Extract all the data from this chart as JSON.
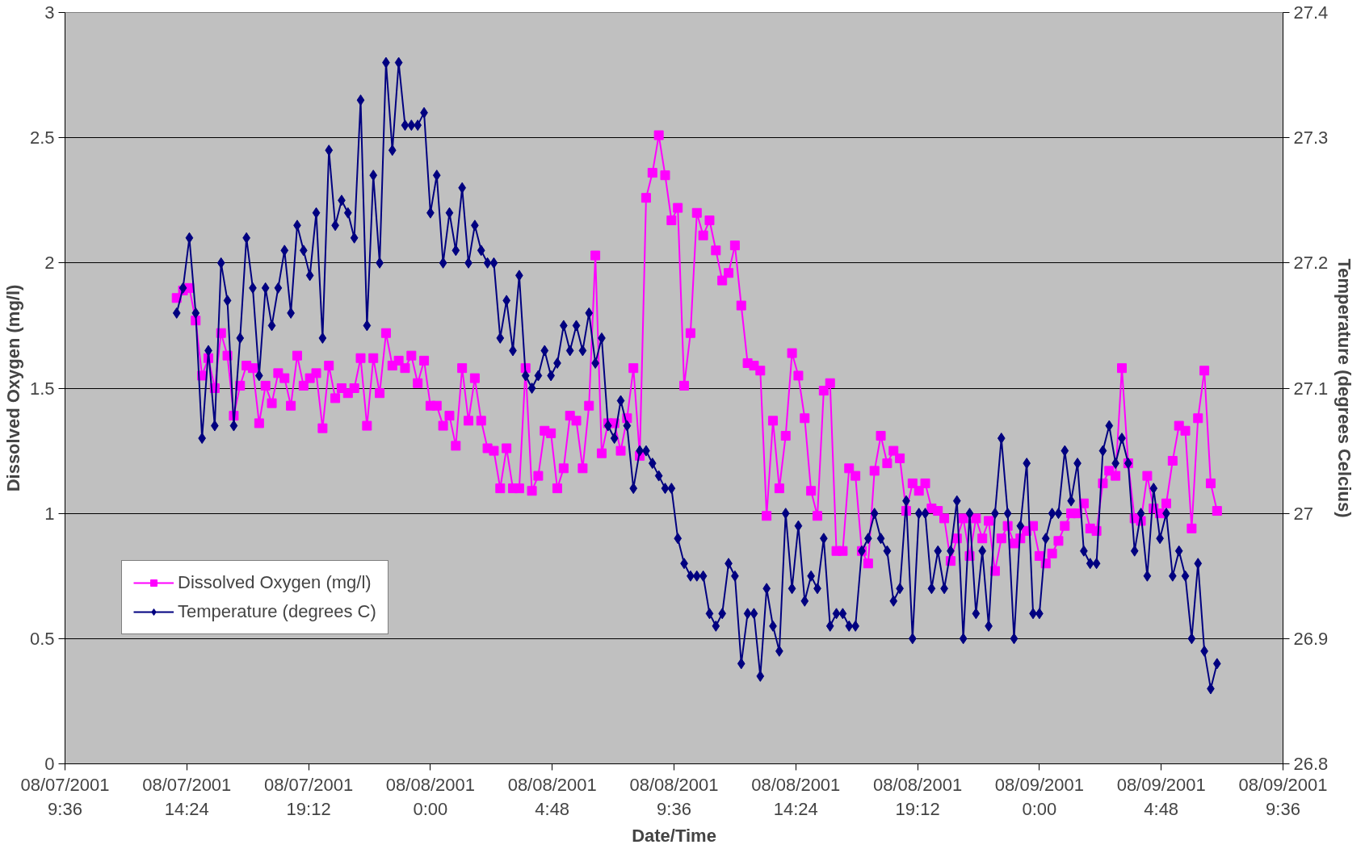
{
  "chart_data": {
    "type": "line",
    "xlabel": "Date/Time",
    "ylabel": "Dissolved Oxygen (mg/l)",
    "y2label": "Temperature (degrees Celcius)",
    "x": [
      "2001-08-07T14:00",
      "2001-08-07T14:15",
      "2001-08-07T14:30",
      "2001-08-07T14:45",
      "2001-08-07T15:00",
      "2001-08-07T15:15",
      "2001-08-07T15:30",
      "2001-08-07T15:45",
      "2001-08-07T16:00",
      "2001-08-07T16:15",
      "2001-08-07T16:30",
      "2001-08-07T16:45",
      "2001-08-07T17:00",
      "2001-08-07T17:15",
      "2001-08-07T17:30",
      "2001-08-07T17:45",
      "2001-08-07T18:00",
      "2001-08-07T18:15",
      "2001-08-07T18:30",
      "2001-08-07T18:45",
      "2001-08-07T19:00",
      "2001-08-07T19:15",
      "2001-08-07T19:30",
      "2001-08-07T19:45",
      "2001-08-07T20:00",
      "2001-08-07T20:15",
      "2001-08-07T20:30",
      "2001-08-07T20:45",
      "2001-08-07T21:00",
      "2001-08-07T21:15",
      "2001-08-07T21:30",
      "2001-08-07T21:45",
      "2001-08-07T22:00",
      "2001-08-07T22:15",
      "2001-08-07T22:30",
      "2001-08-07T22:45",
      "2001-08-07T23:00",
      "2001-08-07T23:15",
      "2001-08-07T23:30",
      "2001-08-07T23:45",
      "2001-08-08T00:00",
      "2001-08-08T00:15",
      "2001-08-08T00:30",
      "2001-08-08T00:45",
      "2001-08-08T01:00",
      "2001-08-08T01:15",
      "2001-08-08T01:30",
      "2001-08-08T01:45",
      "2001-08-08T02:00",
      "2001-08-08T02:15",
      "2001-08-08T02:30",
      "2001-08-08T02:45",
      "2001-08-08T03:00",
      "2001-08-08T03:15",
      "2001-08-08T03:30",
      "2001-08-08T03:45",
      "2001-08-08T04:00",
      "2001-08-08T04:15",
      "2001-08-08T04:30",
      "2001-08-08T04:45",
      "2001-08-08T05:00",
      "2001-08-08T05:15",
      "2001-08-08T05:30",
      "2001-08-08T05:45",
      "2001-08-08T06:00",
      "2001-08-08T06:15",
      "2001-08-08T06:30",
      "2001-08-08T06:45",
      "2001-08-08T07:00",
      "2001-08-08T07:15",
      "2001-08-08T07:30",
      "2001-08-08T07:45",
      "2001-08-08T08:00",
      "2001-08-08T08:15",
      "2001-08-08T08:30",
      "2001-08-08T08:45",
      "2001-08-08T09:00",
      "2001-08-08T09:15",
      "2001-08-08T09:30",
      "2001-08-08T09:45",
      "2001-08-08T10:00",
      "2001-08-08T10:15",
      "2001-08-08T10:30",
      "2001-08-08T10:45",
      "2001-08-08T11:00",
      "2001-08-08T11:15",
      "2001-08-08T11:30",
      "2001-08-08T11:45",
      "2001-08-08T12:00",
      "2001-08-08T12:15",
      "2001-08-08T12:30",
      "2001-08-08T12:45",
      "2001-08-08T13:00",
      "2001-08-08T13:15",
      "2001-08-08T13:30",
      "2001-08-08T13:45",
      "2001-08-08T14:00",
      "2001-08-08T14:15",
      "2001-08-08T14:30",
      "2001-08-08T14:45",
      "2001-08-08T15:00",
      "2001-08-08T15:15",
      "2001-08-08T15:30",
      "2001-08-08T15:45",
      "2001-08-08T16:00",
      "2001-08-08T16:15",
      "2001-08-08T16:30",
      "2001-08-08T16:45",
      "2001-08-08T17:00",
      "2001-08-08T17:15",
      "2001-08-08T17:30",
      "2001-08-08T17:45",
      "2001-08-08T18:00",
      "2001-08-08T18:15",
      "2001-08-08T18:30",
      "2001-08-08T18:45",
      "2001-08-08T19:00",
      "2001-08-08T19:15",
      "2001-08-08T19:30",
      "2001-08-08T19:45",
      "2001-08-08T20:00",
      "2001-08-08T20:15",
      "2001-08-08T20:30",
      "2001-08-08T20:45",
      "2001-08-08T21:00",
      "2001-08-08T21:15",
      "2001-08-08T21:30",
      "2001-08-08T21:45",
      "2001-08-08T22:00",
      "2001-08-08T22:15",
      "2001-08-08T22:30",
      "2001-08-08T22:45",
      "2001-08-08T23:00",
      "2001-08-08T23:15",
      "2001-08-08T23:30",
      "2001-08-08T23:45",
      "2001-08-09T00:00",
      "2001-08-09T00:15",
      "2001-08-09T00:30",
      "2001-08-09T00:45",
      "2001-08-09T01:00",
      "2001-08-09T01:15",
      "2001-08-09T01:30",
      "2001-08-09T01:45",
      "2001-08-09T02:00",
      "2001-08-09T02:15",
      "2001-08-09T02:30",
      "2001-08-09T02:45",
      "2001-08-09T03:00",
      "2001-08-09T03:15",
      "2001-08-09T03:30",
      "2001-08-09T03:45",
      "2001-08-09T04:00",
      "2001-08-09T04:15",
      "2001-08-09T04:30",
      "2001-08-09T04:45",
      "2001-08-09T05:00",
      "2001-08-09T05:15",
      "2001-08-09T05:30",
      "2001-08-09T05:45",
      "2001-08-09T06:00",
      "2001-08-09T06:15",
      "2001-08-09T06:30",
      "2001-08-09T06:45",
      "2001-08-09T07:00"
    ],
    "series": [
      {
        "name": "Dissolved Oxygen (mg/l)",
        "color": "#ff00ff",
        "marker": "square",
        "values": [
          1.86,
          1.89,
          1.9,
          1.77,
          1.55,
          1.62,
          1.5,
          1.72,
          1.63,
          1.39,
          1.51,
          1.59,
          1.58,
          1.36,
          1.51,
          1.44,
          1.56,
          1.54,
          1.43,
          1.63,
          1.51,
          1.54,
          1.56,
          1.34,
          1.59,
          1.46,
          1.5,
          1.48,
          1.5,
          1.62,
          1.35,
          1.62,
          1.48,
          1.72,
          1.59,
          1.61,
          1.58,
          1.63,
          1.52,
          1.61,
          1.43,
          1.43,
          1.35,
          1.39,
          1.27,
          1.58,
          1.37,
          1.54,
          1.37,
          1.26,
          1.25,
          1.1,
          1.26,
          1.1,
          1.1,
          1.58,
          1.09,
          1.15,
          1.33,
          1.32,
          1.1,
          1.18,
          1.39,
          1.37,
          1.18,
          1.43,
          2.03,
          1.24,
          1.36,
          1.36,
          1.25,
          1.38,
          1.58,
          1.23,
          2.26,
          2.36,
          2.51,
          2.35,
          2.17,
          2.22,
          1.51,
          1.72,
          2.2,
          2.11,
          2.17,
          2.05,
          1.93,
          1.96,
          2.07,
          1.83,
          1.6,
          1.59,
          1.57,
          0.99,
          1.37,
          1.1,
          1.31,
          1.64,
          1.55,
          1.38,
          1.09,
          0.99,
          1.49,
          1.52,
          0.85,
          0.85,
          1.18,
          1.15,
          0.85,
          0.8,
          1.17,
          1.31,
          1.2,
          1.25,
          1.22,
          1.01,
          1.12,
          1.09,
          1.12,
          1.02,
          1.01,
          0.98,
          0.81,
          0.9,
          0.98,
          0.83,
          0.98,
          0.9,
          0.97,
          0.77,
          0.9,
          0.95,
          0.88,
          0.9,
          0.93,
          0.95,
          0.83,
          0.8,
          0.84,
          0.89,
          0.95,
          1.0,
          1.0,
          1.04,
          0.94,
          0.93,
          1.12,
          1.17,
          1.15,
          1.58,
          1.2,
          0.98,
          0.97,
          1.15,
          1.02,
          1.0,
          1.04,
          1.21,
          1.35,
          1.33,
          0.94,
          1.38,
          1.57,
          1.12,
          1.01
        ]
      },
      {
        "name": "Temperature (degrees C)",
        "color": "#000080",
        "marker": "diamond",
        "axis": "y2",
        "values": [
          27.16,
          27.18,
          27.22,
          27.16,
          27.06,
          27.13,
          27.07,
          27.2,
          27.17,
          27.07,
          27.14,
          27.22,
          27.18,
          27.11,
          27.18,
          27.15,
          27.18,
          27.21,
          27.16,
          27.23,
          27.21,
          27.19,
          27.24,
          27.14,
          27.29,
          27.23,
          27.25,
          27.24,
          27.22,
          27.33,
          27.15,
          27.27,
          27.2,
          27.36,
          27.29,
          27.36,
          27.31,
          27.31,
          27.31,
          27.32,
          27.24,
          27.27,
          27.2,
          27.24,
          27.21,
          27.26,
          27.2,
          27.23,
          27.21,
          27.2,
          27.2,
          27.14,
          27.17,
          27.13,
          27.19,
          27.11,
          27.1,
          27.11,
          27.13,
          27.11,
          27.12,
          27.15,
          27.13,
          27.15,
          27.13,
          27.16,
          27.12,
          27.14,
          27.07,
          27.06,
          27.09,
          27.07,
          27.02,
          27.05,
          27.05,
          27.04,
          27.03,
          27.02,
          27.02,
          26.98,
          26.96,
          26.95,
          26.95,
          26.95,
          26.92,
          26.91,
          26.92,
          26.96,
          26.95,
          26.88,
          26.92,
          26.92,
          26.87,
          26.94,
          26.91,
          26.89,
          27.0,
          26.94,
          26.99,
          26.93,
          26.95,
          26.94,
          26.98,
          26.91,
          26.92,
          26.92,
          26.91,
          26.91,
          26.97,
          26.98,
          27.0,
          26.98,
          26.97,
          26.93,
          26.94,
          27.01,
          26.9,
          27.0,
          27.0,
          26.94,
          26.97,
          26.94,
          26.97,
          27.01,
          26.9,
          27.0,
          26.92,
          26.97,
          26.91,
          27.0,
          27.06,
          27.0,
          26.9,
          26.99,
          27.04,
          26.92,
          26.92,
          26.98,
          27.0,
          27.0,
          27.05,
          27.01,
          27.04,
          26.97,
          26.96,
          26.96,
          27.05,
          27.07,
          27.04,
          27.06,
          27.04,
          26.97,
          27.0,
          26.95,
          27.02,
          26.98,
          27.0,
          26.95,
          26.97,
          26.95,
          26.9,
          26.96,
          26.89,
          26.86,
          26.88
        ]
      }
    ],
    "xlim": [
      "2001-08-07T09:36",
      "2001-08-09T09:36"
    ],
    "xticks": [
      {
        "value": "2001-08-07T09:36",
        "label": "08/07/2001\n9:36"
      },
      {
        "value": "2001-08-07T14:24",
        "label": "08/07/2001\n14:24"
      },
      {
        "value": "2001-08-07T19:12",
        "label": "08/07/2001\n19:12"
      },
      {
        "value": "2001-08-08T00:00",
        "label": "08/08/2001\n0:00"
      },
      {
        "value": "2001-08-08T04:48",
        "label": "08/08/2001\n4:48"
      },
      {
        "value": "2001-08-08T09:36",
        "label": "08/08/2001\n9:36"
      },
      {
        "value": "2001-08-08T14:24",
        "label": "08/08/2001\n14:24"
      },
      {
        "value": "2001-08-08T19:12",
        "label": "08/08/2001\n19:12"
      },
      {
        "value": "2001-08-09T00:00",
        "label": "08/09/2001\n0:00"
      },
      {
        "value": "2001-08-09T04:48",
        "label": "08/09/2001\n4:48"
      },
      {
        "value": "2001-08-09T09:36",
        "label": "08/09/2001\n9:36"
      }
    ],
    "ylim": [
      0,
      3
    ],
    "yticks": [
      0,
      0.5,
      1,
      1.5,
      2,
      2.5,
      3
    ],
    "y2lim": [
      26.8,
      27.4
    ],
    "y2ticks": [
      26.8,
      26.9,
      27,
      27.1,
      27.2,
      27.3,
      27.4
    ],
    "grid": "y",
    "legend": "bottom left",
    "line_style": "solid"
  }
}
